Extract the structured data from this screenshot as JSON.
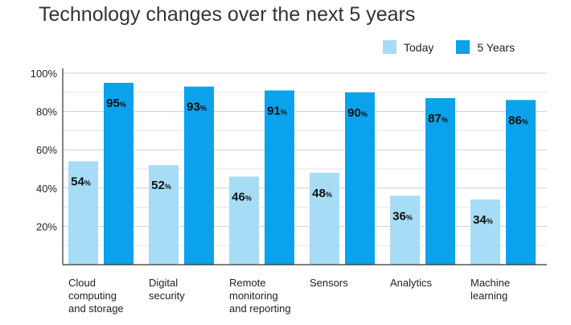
{
  "chart_data": {
    "type": "bar",
    "title": "Technology changes over the next 5 years",
    "xlabel": "",
    "ylabel": "",
    "ylim": [
      0,
      100
    ],
    "yticks": [
      "100%",
      "80%",
      "60%",
      "40%",
      "20%"
    ],
    "categories": [
      [
        "Cloud",
        "computing",
        "and storage"
      ],
      [
        "Digital",
        "security"
      ],
      [
        "Remote",
        "monitoring",
        "and reporting"
      ],
      [
        "Sensors"
      ],
      [
        "Analytics"
      ],
      [
        "Machine",
        "learning"
      ]
    ],
    "series": [
      {
        "name": "Today",
        "color": "#a6dcf6",
        "values": [
          54,
          52,
          46,
          48,
          36,
          34
        ]
      },
      {
        "name": "5 Years",
        "color": "#0aa2eb",
        "values": [
          95,
          93,
          91,
          90,
          87,
          86
        ]
      }
    ],
    "value_suffix": "%",
    "legend_position": "top-right",
    "grid": true
  }
}
